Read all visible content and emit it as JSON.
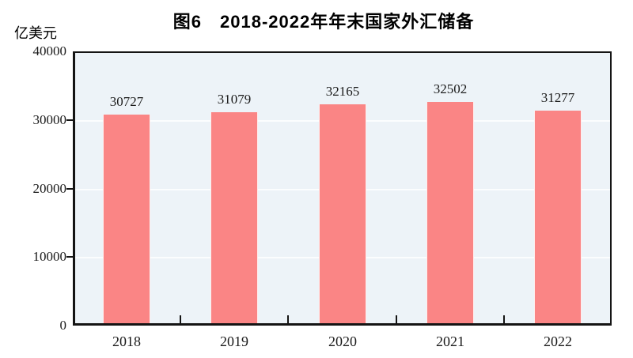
{
  "figure": {
    "title": "图6　2018-2022年年末国家外汇储备",
    "unit_label": "亿美元"
  },
  "chart_data": {
    "type": "bar",
    "title": "图6　2018-2022年年末国家外汇储备",
    "ylabel": "亿美元",
    "xlabel": "",
    "categories": [
      "2018",
      "2019",
      "2020",
      "2021",
      "2022"
    ],
    "values": [
      30727,
      31079,
      32165,
      32502,
      31277
    ],
    "data_labels": [
      "30727",
      "31079",
      "32165",
      "32502",
      "31277"
    ],
    "ylim": [
      0,
      40000
    ],
    "yticks": [
      0,
      10000,
      20000,
      30000,
      40000
    ],
    "grid": true,
    "legend": false,
    "bar_color": "#fa8585",
    "plot_background": "#edf3f8",
    "axis_color": "#141414",
    "gridline_color": "#ffffff"
  }
}
